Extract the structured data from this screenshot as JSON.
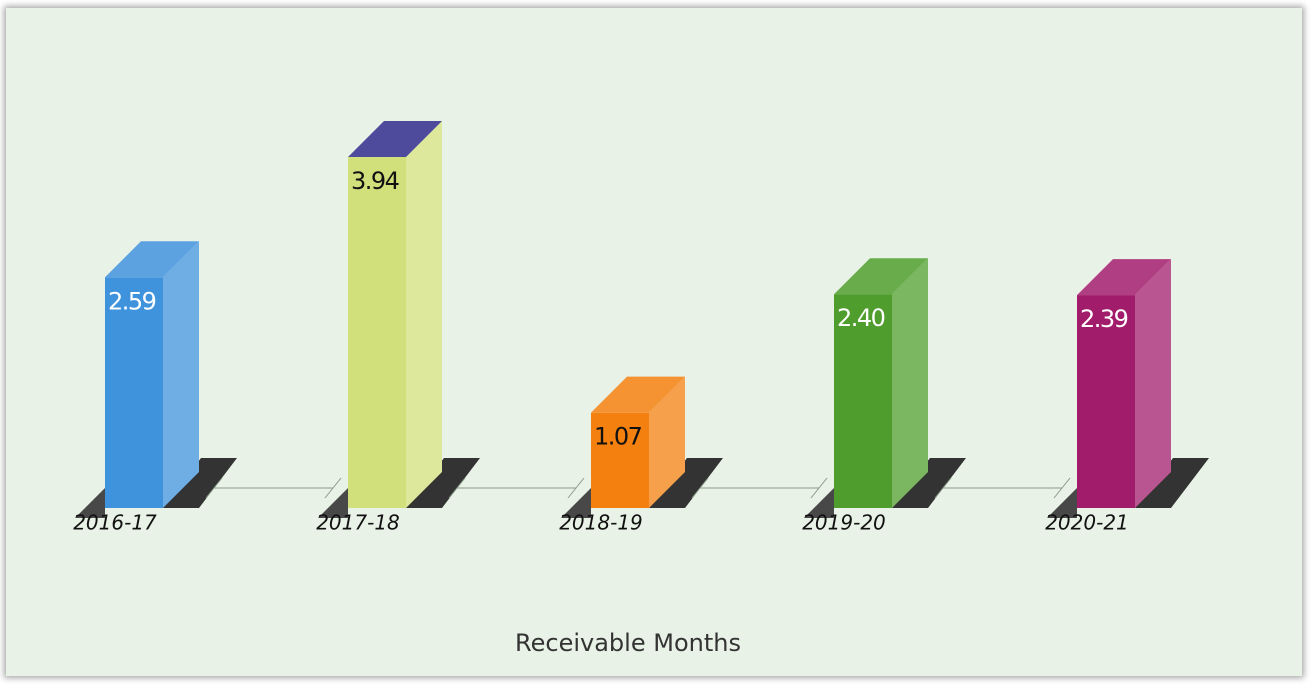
{
  "chart_data": {
    "type": "bar3d",
    "title": "Receivable Months",
    "categories": [
      "2016-17",
      "2017-18",
      "2018-19",
      "2019-20",
      "2020-21"
    ],
    "values": [
      2.59,
      3.94,
      1.07,
      2.4,
      2.39
    ],
    "value_labels": [
      "2.59",
      "3.94",
      "1.07",
      "2.40",
      "2.39"
    ],
    "colors": [
      "#3f92dc",
      "#d2e07c",
      "#f3800f",
      "#4f9d2c",
      "#a21c6c"
    ]
  }
}
